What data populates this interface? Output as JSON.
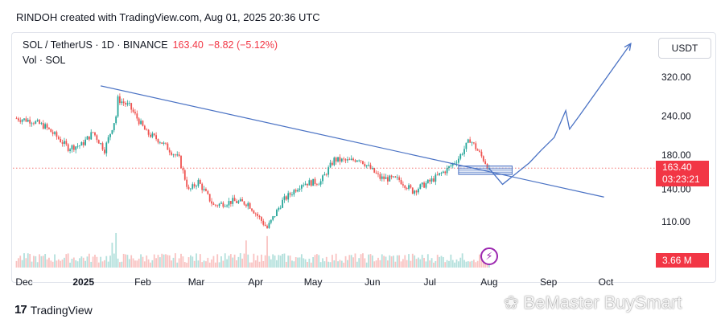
{
  "header": {
    "credit": "RINDOH created with TradingView.com, Aug 01, 2025 20:36 UTC"
  },
  "legend": {
    "symbol": "SOL / TetherUS · 1D · BINANCE",
    "last": "163.40",
    "change": "−8.82 (−5.12%)",
    "volume_label": "Vol · SOL"
  },
  "currency_button": "USDT",
  "price_tag": {
    "price": "163.40",
    "countdown": "03:23:21"
  },
  "volume_tag": "3.66 M",
  "footer": {
    "brand": "TradingView",
    "watermark": "BeMaster BuySmart"
  },
  "colors": {
    "up": "#26a69a",
    "down": "#ef5350",
    "line": "#4a72c4",
    "tag": "#f23645",
    "zone": "#4a72c4"
  },
  "chart_data": {
    "type": "candlestick",
    "y_scale": "log",
    "y_ticks": [
      "320.00",
      "240.00",
      "180.00",
      "140.00",
      "110.00"
    ],
    "y_tick_values": [
      320,
      240,
      180,
      140,
      110
    ],
    "x_ticks": [
      "Dec",
      "2025",
      "Feb",
      "Mar",
      "Apr",
      "May",
      "Jun",
      "Jul",
      "Aug",
      "Sep",
      "Oct"
    ],
    "x_tick_dates": [
      "2024-12-01",
      "2025-01-01",
      "2025-02-01",
      "2025-03-01",
      "2025-04-01",
      "2025-05-01",
      "2025-06-01",
      "2025-07-01",
      "2025-08-01",
      "2025-09-01",
      "2025-10-01"
    ],
    "close_anchors": [
      [
        "2024-11-27",
        236
      ],
      [
        "2024-12-05",
        232
      ],
      [
        "2024-12-12",
        222
      ],
      [
        "2024-12-18",
        206
      ],
      [
        "2024-12-24",
        190
      ],
      [
        "2024-12-31",
        194
      ],
      [
        "2025-01-06",
        213
      ],
      [
        "2025-01-12",
        187
      ],
      [
        "2025-01-18",
        240
      ],
      [
        "2025-01-19",
        272
      ],
      [
        "2025-01-25",
        258
      ],
      [
        "2025-02-03",
        212
      ],
      [
        "2025-02-10",
        200
      ],
      [
        "2025-02-20",
        175
      ],
      [
        "2025-02-25",
        138
      ],
      [
        "2025-03-02",
        148
      ],
      [
        "2025-03-10",
        124
      ],
      [
        "2025-03-20",
        128
      ],
      [
        "2025-03-28",
        126
      ],
      [
        "2025-04-07",
        105
      ],
      [
        "2025-04-15",
        128
      ],
      [
        "2025-04-25",
        146
      ],
      [
        "2025-05-05",
        148
      ],
      [
        "2025-05-12",
        174
      ],
      [
        "2025-05-20",
        172
      ],
      [
        "2025-05-25",
        176
      ],
      [
        "2025-06-05",
        152
      ],
      [
        "2025-06-15",
        150
      ],
      [
        "2025-06-22",
        138
      ],
      [
        "2025-07-01",
        148
      ],
      [
        "2025-07-10",
        162
      ],
      [
        "2025-07-16",
        176
      ],
      [
        "2025-07-22",
        202
      ],
      [
        "2025-07-26",
        186
      ],
      [
        "2025-08-01",
        163.4
      ]
    ],
    "current_price": 163.4,
    "current_volume": "3.66 M",
    "annotations": {
      "trendline": [
        [
          "2025-01-10",
          300
        ],
        [
          "2025-09-30",
          132
        ]
      ],
      "projection": [
        [
          "2025-08-01",
          163
        ],
        [
          "2025-08-08",
          145
        ],
        [
          "2025-08-22",
          170
        ],
        [
          "2025-08-28",
          186
        ],
        [
          "2025-09-04",
          205
        ],
        [
          "2025-09-10",
          250
        ],
        [
          "2025-09-12",
          218
        ],
        [
          "2025-09-17",
          240
        ],
        [
          "2025-10-14",
          410
        ]
      ],
      "zone": {
        "from": "2025-07-16",
        "to": "2025-08-13",
        "low": 156,
        "high": 166
      }
    }
  }
}
